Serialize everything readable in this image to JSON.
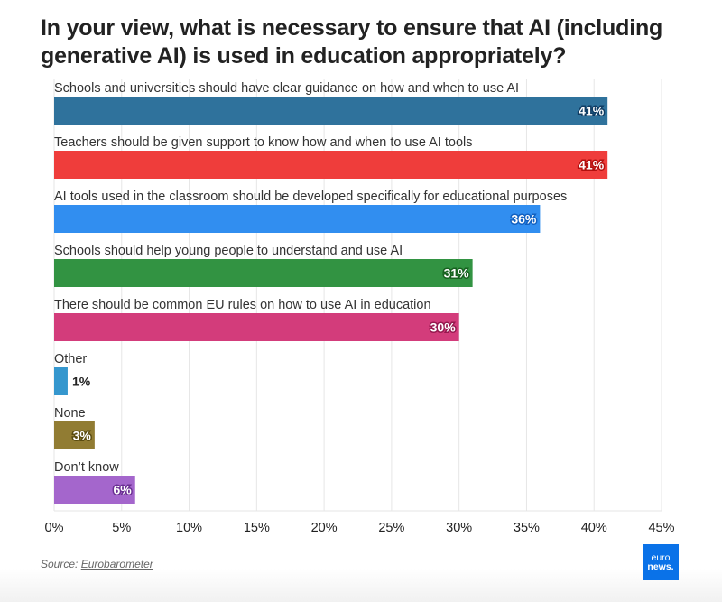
{
  "title": "In your view, what is necessary to ensure that AI (including generative AI) is used in education appropriately?",
  "source": {
    "prefix": "Source: ",
    "link_text": "Eurobarometer"
  },
  "logo": {
    "line1": "euro",
    "line2": "news."
  },
  "chart_data": {
    "type": "bar",
    "orientation": "horizontal",
    "title": "In your view, what is necessary to ensure that AI (including generative AI) is used in education appropriately?",
    "xlabel": "",
    "ylabel": "",
    "xlim": [
      0,
      45
    ],
    "grid": true,
    "value_suffix": "%",
    "ticks": [
      "0%",
      "5%",
      "10%",
      "15%",
      "20%",
      "25%",
      "30%",
      "35%",
      "40%",
      "45%"
    ],
    "tick_values": [
      0,
      5,
      10,
      15,
      20,
      25,
      30,
      35,
      40,
      45
    ],
    "categories": [
      "Schools and universities should have clear guidance on how and when to use AI",
      "Teachers should be given support to know how and when to use AI tools",
      "AI tools used in the classroom should be developed specifically for educational purposes",
      "Schools should help young people to understand and use AI",
      "There should be common EU rules on how to use AI in education",
      "Other",
      "None",
      "Don’t know"
    ],
    "values": [
      41,
      41,
      36,
      31,
      30,
      1,
      3,
      6
    ],
    "value_labels": [
      "41%",
      "41%",
      "36%",
      "31%",
      "30%",
      "1%",
      "3%",
      "6%"
    ],
    "colors": [
      "#2f729c",
      "#ef3d3b",
      "#318ef0",
      "#329342",
      "#d33c7b",
      "#3597ce",
      "#917c33",
      "#a466cc"
    ],
    "label_outline_colors": [
      "#0f3c63",
      "#b3100f",
      "#1160c0",
      "#17601f",
      "#96184e",
      "#ffffff",
      "#5a4b10",
      "#6a2f92"
    ]
  }
}
